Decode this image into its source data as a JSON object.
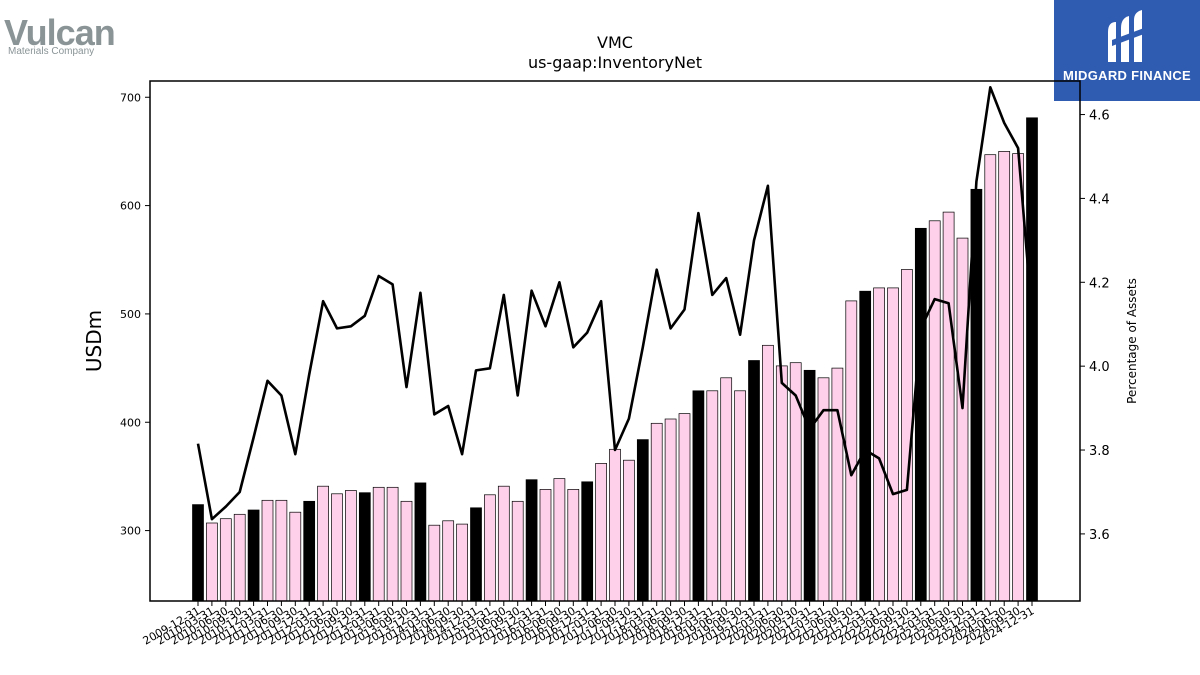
{
  "logos": {
    "left": {
      "brand": "Vulcan",
      "subtitle": "Materials Company"
    },
    "right": {
      "name": "MIDGARD FINANCE"
    }
  },
  "chart_data": {
    "type": "bar",
    "title": "VMC",
    "subtitle": "us-gaap:InventoryNet",
    "ylabel": "USDm",
    "y2label": "Percentage of Assets",
    "ylim": [
      235,
      715
    ],
    "y2lim": [
      3.44,
      4.68
    ],
    "yticks": [
      300,
      400,
      500,
      600,
      700
    ],
    "y2ticks": [
      3.6,
      3.8,
      4.0,
      4.2,
      4.4,
      4.6
    ],
    "colors": {
      "annual": "#000000",
      "quarterly": "#ffd0ea",
      "line": "#000000"
    },
    "categories": [
      "2009-12-31",
      "2010-03-31",
      "2010-06-30",
      "2010-09-30",
      "2010-12-31",
      "2011-03-31",
      "2011-06-30",
      "2011-09-30",
      "2011-12-31",
      "2012-03-31",
      "2012-06-30",
      "2012-09-30",
      "2012-12-31",
      "2013-03-31",
      "2013-06-30",
      "2013-09-30",
      "2013-12-31",
      "2014-03-31",
      "2014-06-30",
      "2014-09-30",
      "2014-12-31",
      "2015-03-31",
      "2015-06-30",
      "2015-09-30",
      "2015-12-31",
      "2016-03-31",
      "2016-06-30",
      "2016-09-30",
      "2016-12-31",
      "2017-03-31",
      "2017-06-30",
      "2017-09-30",
      "2017-12-31",
      "2018-03-31",
      "2018-06-30",
      "2018-09-30",
      "2018-12-31",
      "2019-03-31",
      "2019-06-30",
      "2019-09-30",
      "2019-12-31",
      "2020-03-31",
      "2020-06-30",
      "2020-09-30",
      "2020-12-31",
      "2021-03-31",
      "2021-06-30",
      "2021-09-30",
      "2021-12-31",
      "2022-03-31",
      "2022-06-30",
      "2022-09-30",
      "2022-12-31",
      "2023-03-31",
      "2023-06-30",
      "2023-09-30",
      "2023-12-31",
      "2024-03-31",
      "2024-06-30",
      "2024-09-30",
      "2024-12-31"
    ],
    "annual": [
      true,
      false,
      false,
      false,
      true,
      false,
      false,
      false,
      true,
      false,
      false,
      false,
      true,
      false,
      false,
      false,
      true,
      false,
      false,
      false,
      true,
      false,
      false,
      false,
      true,
      false,
      false,
      false,
      true,
      false,
      false,
      false,
      true,
      false,
      false,
      false,
      true,
      false,
      false,
      false,
      true,
      false,
      false,
      false,
      true,
      false,
      false,
      false,
      true,
      false,
      false,
      false,
      true,
      false,
      false,
      false,
      true,
      false,
      false,
      false,
      true
    ],
    "series": [
      {
        "name": "",
        "axis": "left",
        "type": "bar",
        "values": [
          324,
          307,
          311,
          315,
          319,
          328,
          328,
          317,
          327,
          341,
          334,
          337,
          335,
          340,
          340,
          327,
          344,
          305,
          309,
          306,
          321,
          333,
          341,
          327,
          347,
          338,
          348,
          338,
          345,
          362,
          375,
          365,
          384,
          399,
          403,
          408,
          429,
          429,
          441,
          429,
          457,
          471,
          452,
          455,
          448,
          441,
          450,
          512,
          521,
          524,
          524,
          541,
          579,
          586,
          594,
          570,
          615,
          647,
          650,
          648,
          681
        ]
      },
      {
        "name": "",
        "axis": "right",
        "type": "line",
        "values": [
          3.815,
          3.635,
          3.665,
          3.7,
          3.83,
          3.965,
          3.93,
          3.79,
          3.98,
          4.155,
          4.09,
          4.095,
          4.12,
          4.215,
          4.195,
          3.95,
          4.175,
          3.885,
          3.905,
          3.79,
          3.99,
          3.995,
          4.17,
          3.93,
          4.18,
          4.095,
          4.2,
          4.045,
          4.08,
          4.155,
          3.8,
          3.875,
          4.045,
          4.23,
          4.09,
          4.135,
          4.365,
          4.17,
          4.21,
          4.075,
          4.3,
          4.43,
          3.96,
          3.93,
          3.85,
          3.895,
          3.895,
          3.74,
          3.8,
          3.78,
          3.695,
          3.705,
          4.09,
          4.16,
          4.15,
          3.9,
          4.44,
          4.665,
          4.58,
          4.52,
          4.12
        ]
      }
    ]
  }
}
